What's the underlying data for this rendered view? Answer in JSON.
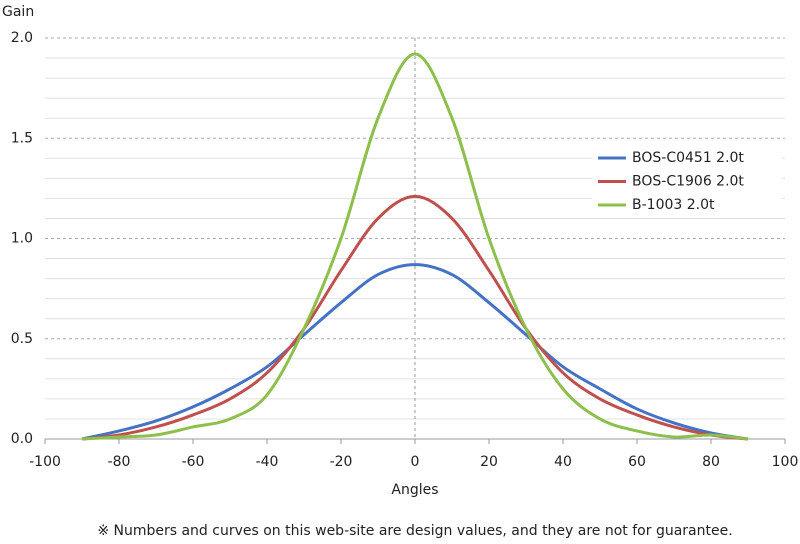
{
  "chart_data": {
    "type": "line",
    "y_label": "Gain",
    "x_label": "Angles",
    "footnote": "※ Numbers and curves on this web-site are design values, and they are not for guarantee.",
    "x": [
      -90,
      -80,
      -70,
      -60,
      -50,
      -40,
      -30,
      -20,
      -10,
      0,
      10,
      20,
      30,
      40,
      50,
      60,
      70,
      80,
      90
    ],
    "series": [
      {
        "name": "BOS-C0451 2.0t",
        "color": "#4472c4",
        "values": [
          0.0,
          0.04,
          0.09,
          0.16,
          0.25,
          0.36,
          0.52,
          0.68,
          0.82,
          0.87,
          0.82,
          0.68,
          0.52,
          0.36,
          0.25,
          0.15,
          0.08,
          0.03,
          0.0
        ]
      },
      {
        "name": "BOS-C1906 2.0t",
        "color": "#c0504d",
        "values": [
          0.0,
          0.02,
          0.06,
          0.12,
          0.2,
          0.33,
          0.55,
          0.84,
          1.1,
          1.21,
          1.1,
          0.84,
          0.55,
          0.33,
          0.2,
          0.12,
          0.06,
          0.02,
          0.0
        ]
      },
      {
        "name": "B-1003 2.0t",
        "color": "#8cbf4b",
        "values": [
          0.0,
          0.01,
          0.02,
          0.06,
          0.1,
          0.22,
          0.55,
          1.0,
          1.6,
          1.92,
          1.6,
          1.0,
          0.55,
          0.25,
          0.1,
          0.04,
          0.01,
          0.02,
          0.0
        ]
      }
    ],
    "xlim": [
      -100,
      100
    ],
    "xticks": [
      -100,
      -80,
      -60,
      -40,
      -20,
      0,
      20,
      40,
      60,
      80,
      100
    ],
    "ylim": [
      0,
      2
    ],
    "yticks": [
      {
        "value": 0,
        "label": "0.0"
      },
      {
        "value": 0.5,
        "label": "0.5"
      },
      {
        "value": 1,
        "label": "1.0"
      },
      {
        "value": 1.5,
        "label": "1.5"
      },
      {
        "value": 2,
        "label": "2.0"
      }
    ],
    "minor_yticks": [
      0.1,
      0.2,
      0.3,
      0.4,
      0.6,
      0.7,
      0.8,
      0.9,
      1.1,
      1.2,
      1.3,
      1.4,
      1.6,
      1.7,
      1.8,
      1.9
    ],
    "grid": true,
    "legend": "right"
  }
}
